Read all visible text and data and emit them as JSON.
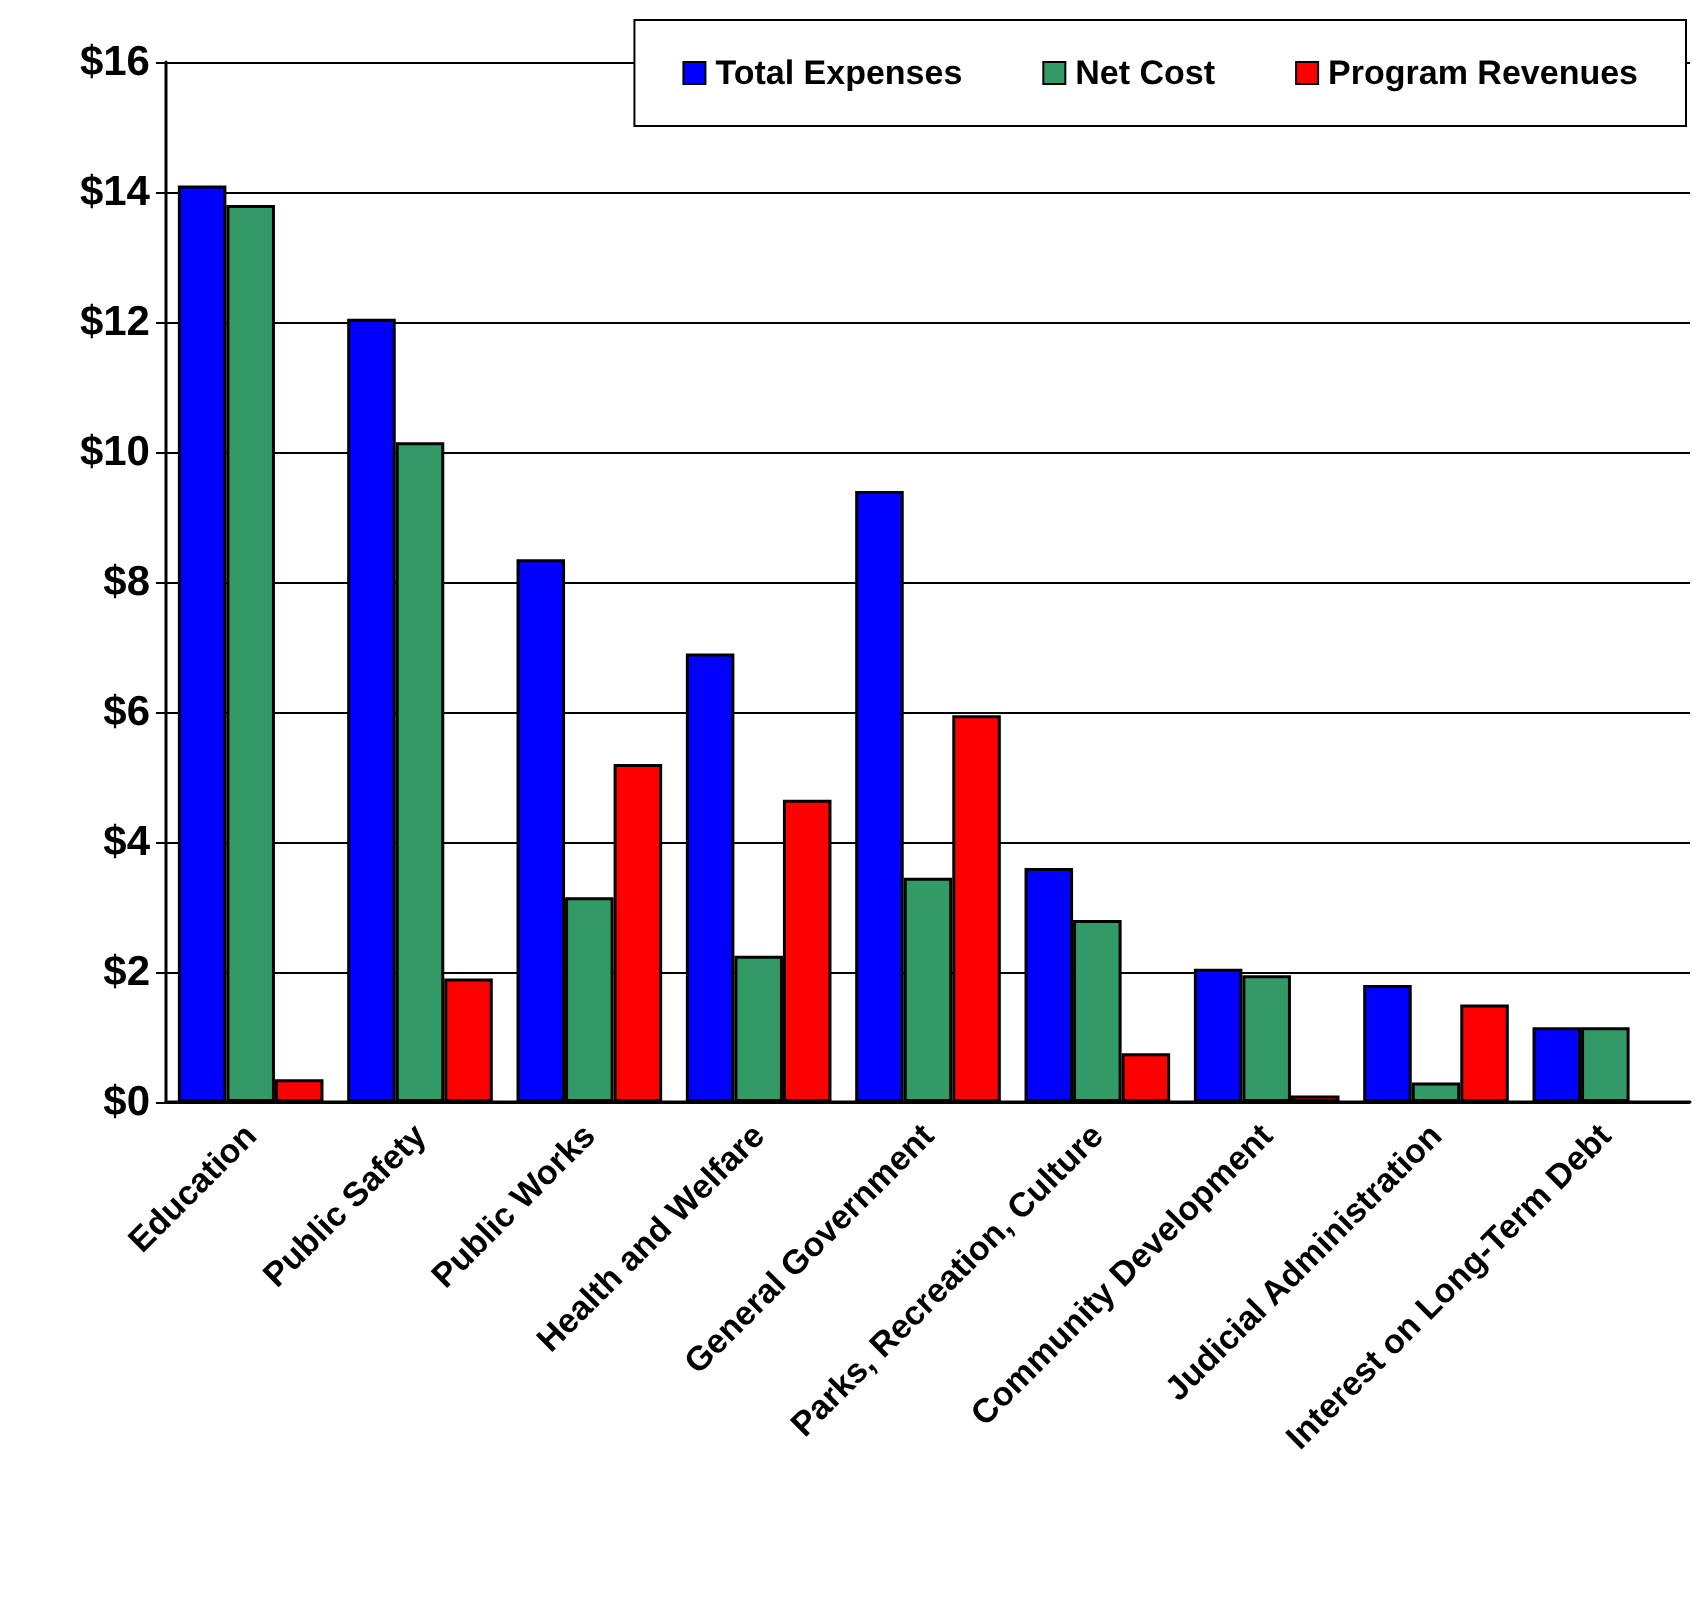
{
  "chart_data": {
    "type": "bar",
    "categories": [
      "Education",
      "Public Safety",
      "Public Works",
      "Health and Welfare",
      "General Government",
      "Parks, Recreation, Culture",
      "Community Development",
      "Judicial Administration",
      "Interest on Long-Term Debt"
    ],
    "series": [
      {
        "name": "Total Expenses",
        "color": "#0000ff",
        "values": [
          14.1,
          12.05,
          8.35,
          6.9,
          9.4,
          3.6,
          2.05,
          1.8,
          1.15
        ]
      },
      {
        "name": "Net Cost",
        "color": "#339966",
        "values": [
          13.8,
          10.15,
          3.15,
          2.25,
          3.45,
          2.8,
          1.95,
          0.3,
          1.15
        ]
      },
      {
        "name": "Program Revenues",
        "color": "#ff0000",
        "values": [
          0.35,
          1.9,
          5.2,
          4.65,
          5.95,
          0.75,
          0.1,
          1.5,
          null
        ]
      }
    ],
    "ylim": [
      0,
      16
    ],
    "yticks": [
      {
        "value": 0,
        "label": "$0"
      },
      {
        "value": 2,
        "label": "$2"
      },
      {
        "value": 4,
        "label": "$4"
      },
      {
        "value": 6,
        "label": "$6"
      },
      {
        "value": 8,
        "label": "$8"
      },
      {
        "value": 10,
        "label": "$10"
      },
      {
        "value": 12,
        "label": "$12"
      },
      {
        "value": 14,
        "label": "$14"
      },
      {
        "value": 16,
        "label": "$16"
      }
    ],
    "grid": "y",
    "legend": "top right"
  }
}
